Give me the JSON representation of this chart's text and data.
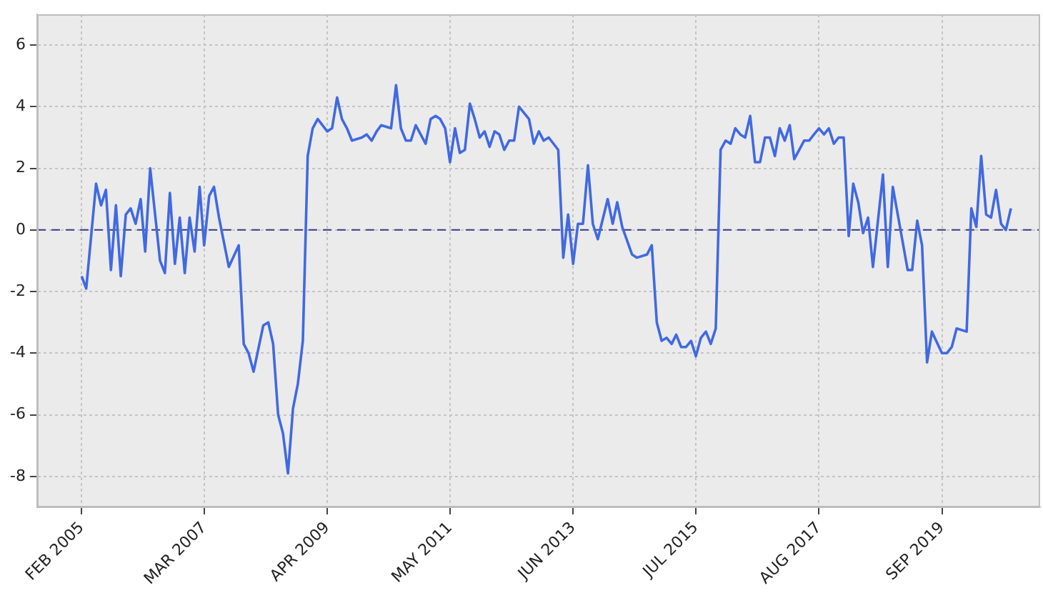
{
  "chart_data": {
    "type": "line",
    "x": [
      "2005-02",
      "2005-03",
      "2005-05",
      "2005-06",
      "2005-07",
      "2005-08",
      "2005-09",
      "2005-10",
      "2005-11",
      "2005-12",
      "2006-01",
      "2006-02",
      "2006-03",
      "2006-04",
      "2006-06",
      "2006-07",
      "2006-08",
      "2006-09",
      "2006-10",
      "2006-11",
      "2006-12",
      "2007-01",
      "2007-02",
      "2007-03",
      "2007-04",
      "2007-05",
      "2007-06",
      "2007-08",
      "2007-10",
      "2007-11",
      "2007-12",
      "2008-01",
      "2008-03",
      "2008-04",
      "2008-05",
      "2008-06",
      "2008-07",
      "2008-08",
      "2008-09",
      "2008-10",
      "2008-11",
      "2008-12",
      "2009-01",
      "2009-02",
      "2009-04",
      "2009-05",
      "2009-06",
      "2009-07",
      "2009-08",
      "2009-09",
      "2009-11",
      "2009-12",
      "2010-01",
      "2010-02",
      "2010-03",
      "2010-05",
      "2010-06",
      "2010-07",
      "2010-08",
      "2010-09",
      "2010-10",
      "2010-12",
      "2011-01",
      "2011-02",
      "2011-03",
      "2011-04",
      "2011-05",
      "2011-06",
      "2011-07",
      "2011-08",
      "2011-09",
      "2011-10",
      "2011-11",
      "2011-12",
      "2012-01",
      "2012-02",
      "2012-03",
      "2012-04",
      "2012-05",
      "2012-06",
      "2012-07",
      "2012-09",
      "2012-10",
      "2012-11",
      "2012-12",
      "2013-01",
      "2013-03",
      "2013-04",
      "2013-05",
      "2013-06",
      "2013-07",
      "2013-08",
      "2013-09",
      "2013-10",
      "2013-11",
      "2014-01",
      "2014-02",
      "2014-03",
      "2014-04",
      "2014-06",
      "2014-07",
      "2014-09",
      "2014-10",
      "2014-11",
      "2014-12",
      "2015-01",
      "2015-02",
      "2015-03",
      "2015-04",
      "2015-05",
      "2015-06",
      "2015-07",
      "2015-08",
      "2015-09",
      "2015-10",
      "2015-11",
      "2015-12",
      "2016-01",
      "2016-02",
      "2016-03",
      "2016-04",
      "2016-05",
      "2016-06",
      "2016-07",
      "2016-08",
      "2016-09",
      "2016-10",
      "2016-11",
      "2016-12",
      "2017-01",
      "2017-02",
      "2017-03",
      "2017-04",
      "2017-05",
      "2017-06",
      "2017-07",
      "2017-08",
      "2017-09",
      "2017-10",
      "2017-11",
      "2017-12",
      "2018-01",
      "2018-02",
      "2018-03",
      "2018-04",
      "2018-05",
      "2018-06",
      "2018-07",
      "2018-09",
      "2018-10",
      "2018-11",
      "2019-02",
      "2019-03",
      "2019-04",
      "2019-05",
      "2019-06",
      "2019-07",
      "2019-09",
      "2019-10",
      "2019-11",
      "2019-12",
      "2020-02",
      "2020-03",
      "2020-04",
      "2020-05",
      "2020-06",
      "2020-07",
      "2020-08",
      "2020-09",
      "2020-10",
      "2020-11"
    ],
    "series": [
      {
        "color": "#4169e1",
        "values": [
          -1.5,
          -1.9,
          1.5,
          0.8,
          1.3,
          -1.3,
          0.8,
          -1.5,
          0.5,
          0.7,
          0.2,
          1.0,
          -0.7,
          2.0,
          -1.0,
          -1.4,
          1.2,
          -1.1,
          0.4,
          -1.4,
          0.4,
          -0.7,
          1.4,
          -0.5,
          1.1,
          1.4,
          0.4,
          -1.2,
          -0.5,
          -3.7,
          -4.0,
          -4.6,
          -3.1,
          -3.0,
          -3.7,
          -6.0,
          -6.6,
          -7.9,
          -5.8,
          -5.0,
          -3.6,
          2.4,
          3.3,
          3.6,
          3.2,
          3.3,
          4.3,
          3.6,
          3.3,
          2.9,
          3.0,
          3.1,
          2.9,
          3.2,
          3.4,
          3.3,
          4.7,
          3.3,
          2.9,
          2.9,
          3.4,
          2.8,
          3.6,
          3.7,
          3.6,
          3.3,
          2.2,
          3.3,
          2.5,
          2.6,
          4.1,
          3.6,
          3.0,
          3.2,
          2.7,
          3.2,
          3.1,
          2.6,
          2.9,
          2.9,
          4.0,
          3.6,
          2.8,
          3.2,
          2.9,
          3.0,
          2.6,
          -0.9,
          0.5,
          -1.1,
          0.2,
          0.2,
          2.1,
          0.2,
          -0.3,
          1.0,
          0.2,
          0.9,
          0.1,
          -0.8,
          -0.9,
          -0.8,
          -0.5,
          -3.0,
          -3.6,
          -3.5,
          -3.7,
          -3.4,
          -3.8,
          -3.8,
          -3.6,
          -4.1,
          -3.5,
          -3.3,
          -3.7,
          -3.2,
          2.6,
          2.9,
          2.8,
          3.3,
          3.1,
          3.0,
          3.7,
          2.2,
          2.2,
          3.0,
          3.0,
          2.4,
          3.3,
          2.9,
          3.4,
          2.3,
          2.6,
          2.9,
          2.9,
          3.1,
          3.3,
          3.1,
          3.3,
          2.8,
          3.0,
          3.0,
          -0.2,
          1.5,
          0.9,
          -0.1,
          0.4,
          -1.2,
          1.8,
          -1.2,
          1.4,
          -1.3,
          -1.3,
          0.3,
          -0.5,
          -4.3,
          -3.3,
          -4.0,
          -4.0,
          -3.8,
          -3.2,
          -3.3,
          0.7,
          0.1,
          2.4,
          0.5,
          0.4,
          1.3,
          0.2,
          0.0,
          0.7
        ]
      }
    ],
    "xlim": [
      "2004-05",
      "2021-05"
    ],
    "xticks": [
      {
        "value": "2005-02",
        "label": "FEB 2005"
      },
      {
        "value": "2007-03",
        "label": "MAR 2007"
      },
      {
        "value": "2009-04",
        "label": "APR 2009"
      },
      {
        "value": "2011-05",
        "label": "MAY 2011"
      },
      {
        "value": "2013-06",
        "label": "JUN 2013"
      },
      {
        "value": "2015-07",
        "label": "JUL 2015"
      },
      {
        "value": "2017-08",
        "label": "AUG 2017"
      },
      {
        "value": "2019-09",
        "label": "SEP 2019"
      }
    ],
    "ylim": [
      -9,
      7
    ],
    "yticks": [
      -8,
      -6,
      -4,
      -2,
      0,
      2,
      4,
      6
    ],
    "ref_lines": [
      {
        "axis": "y",
        "value": 0,
        "color": "#3a3a8c",
        "line_style": "dashed"
      }
    ],
    "grid": true,
    "legend": false,
    "marker": "none",
    "line_style": "solid"
  }
}
